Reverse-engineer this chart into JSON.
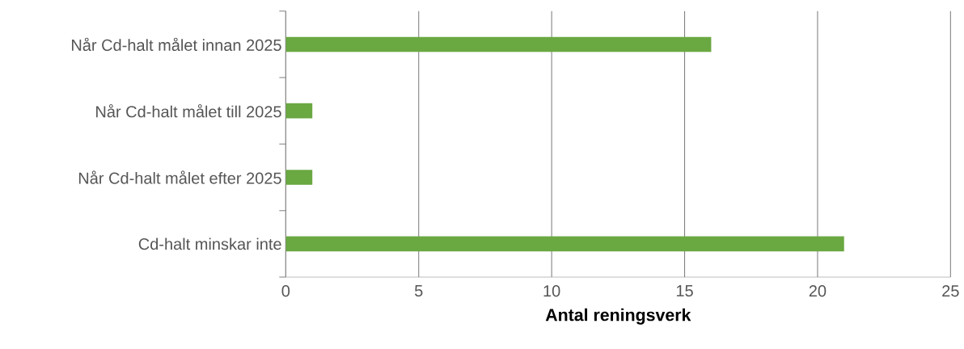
{
  "chart_data": {
    "type": "bar",
    "orientation": "horizontal",
    "xlabel": "Antal reningsverk",
    "categories": [
      "Når Cd-halt målet innan 2025",
      "Når Cd-halt målet till 2025",
      "Når Cd-halt målet efter 2025",
      "Cd-halt minskar inte"
    ],
    "values": [
      16,
      1,
      1,
      21
    ],
    "color": "#6aa842",
    "xlim": [
      0,
      25
    ],
    "xticks": [
      0,
      5,
      10,
      15,
      20,
      25
    ],
    "grid": "x"
  }
}
